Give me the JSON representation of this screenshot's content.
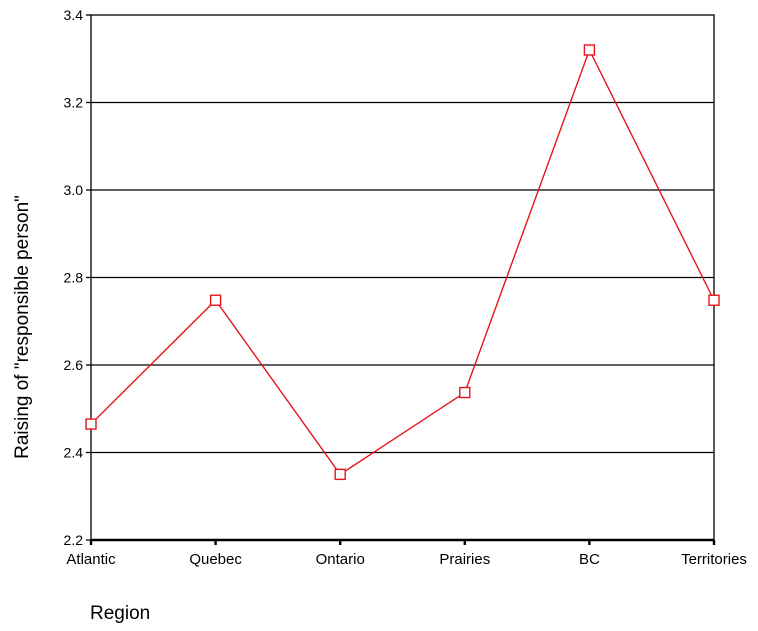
{
  "chart_data": {
    "type": "line",
    "xlabel": "Region",
    "ylabel": "Raising of \"responsible person\"",
    "ylim": [
      2.2,
      3.4
    ],
    "yticks": [
      "2.2",
      "2.4",
      "2.6",
      "2.8",
      "3.0",
      "3.2",
      "3.4"
    ],
    "grid": true,
    "categories": [
      "Atlantic",
      "Quebec",
      "Ontario",
      "Prairies",
      "BC",
      "Territories"
    ],
    "series": [
      {
        "values": [
          2.465,
          2.748,
          2.35,
          2.537,
          3.32,
          2.748
        ],
        "color": "#e8141c",
        "marker": "open-square"
      }
    ],
    "colors": {
      "line": "#e8141c",
      "axis": "#000000",
      "grid": "#000000"
    }
  }
}
